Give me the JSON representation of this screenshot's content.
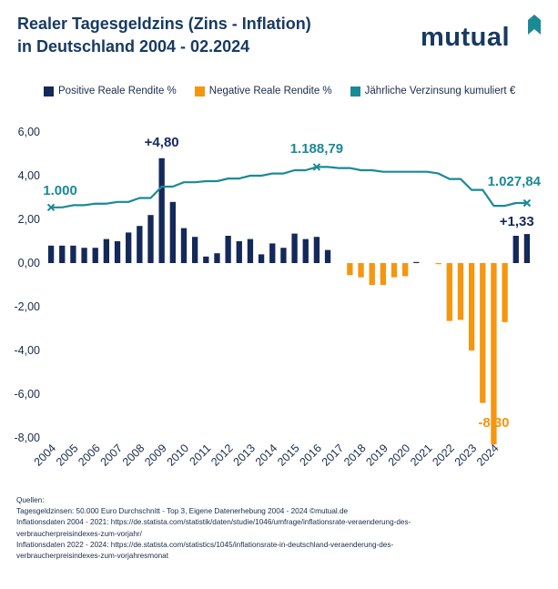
{
  "title": {
    "line1": "Realer Tagesgeldzins (Zins - Inflation)",
    "line2": "in Deutschland 2004 - 02.2024"
  },
  "logo": {
    "text": "mutual",
    "color": "#183a63",
    "accent": "#1a8a95"
  },
  "legend": {
    "positive": "Positive Reale Rendite %",
    "negative": "Negative Reale Rendite %",
    "line": "Jährliche Verzinsung kumuliert €"
  },
  "colors": {
    "positive": "#14295a",
    "negative": "#f5960f",
    "line": "#1a8a95",
    "text": "#1a2b4a"
  },
  "chart_data": {
    "type": "bar",
    "title": "Realer Tagesgeldzins (Zins - Inflation) in Deutschland 2004 - 02.2024",
    "ylim": [
      -8,
      6
    ],
    "yticks": [
      6,
      4,
      2,
      0,
      -2,
      -4,
      -6,
      -8
    ],
    "ytick_labels": [
      "6,00",
      "4,00",
      "2,00",
      "0,00",
      "-2,00",
      "-4,00",
      "-6,00",
      "-8,00"
    ],
    "year_labels": [
      "2004",
      "2005",
      "2006",
      "2007",
      "2008",
      "2009",
      "2010",
      "2011",
      "2012",
      "2013",
      "2014",
      "2015",
      "2016",
      "2017",
      "2018",
      "2019",
      "2020",
      "2021",
      "2022",
      "2023",
      "2024"
    ],
    "bars": [
      0.8,
      0.8,
      0.8,
      0.7,
      0.7,
      1.1,
      1.0,
      1.4,
      1.7,
      2.2,
      4.8,
      2.8,
      1.6,
      1.2,
      0.3,
      0.45,
      1.25,
      1.0,
      1.1,
      0.4,
      0.9,
      0.7,
      1.35,
      1.1,
      1.2,
      0.6,
      0.0,
      -0.55,
      -0.65,
      -1.0,
      -1.0,
      -0.65,
      -0.6,
      0.05,
      0.0,
      -0.05,
      -2.65,
      -2.6,
      -4.0,
      -6.4,
      -8.3,
      -2.7,
      1.25,
      1.33
    ],
    "line": [
      2.55,
      2.55,
      2.65,
      2.65,
      2.72,
      2.72,
      2.8,
      2.8,
      2.98,
      2.98,
      3.5,
      3.5,
      3.7,
      3.7,
      3.75,
      3.75,
      3.87,
      3.87,
      4.0,
      4.0,
      4.1,
      4.1,
      4.25,
      4.25,
      4.4,
      4.4,
      4.35,
      4.35,
      4.25,
      4.25,
      4.18,
      4.18,
      4.18,
      4.18,
      4.18,
      4.1,
      3.85,
      3.85,
      3.35,
      3.35,
      2.62,
      2.62,
      2.75,
      2.75
    ],
    "annotations": {
      "peak": "+4,80",
      "low": "-8,30",
      "last": "+1,33",
      "start_value": "1.000",
      "mid_value": "1.188,79",
      "end_value": "1.027,84"
    }
  },
  "sources": {
    "heading": "Quellen:",
    "lines": [
      "Tagesgeldzinsen:  50.000 Euro Durchschnitt - Top 3, Eigene Datenerhebung 2004 - 2024 ©mutual.de",
      "Inflationsdaten 2004 - 2021: https://de.statista.com/statistik/daten/studie/1046/umfrage/inflationsrate-veraenderung-des-",
      "verbraucherpreisindexes-zum-vorjahr/",
      "Inflationsdaten 2022 - 2024: https://de.statista.com/statistics/1045/inflationsrate-in-deutschland-veraenderung-des-",
      "verbraucherpreisindexes-zum-vorjahresmonat"
    ]
  }
}
